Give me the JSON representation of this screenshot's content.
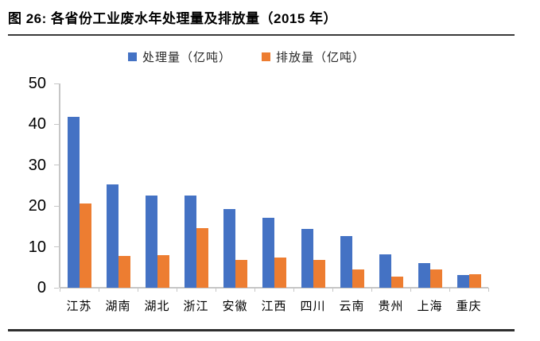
{
  "figure": {
    "title": "图 26:  各省份工业废水年处理量及排放量（2015 年）"
  },
  "chart_data": {
    "type": "bar",
    "title": "各省份工业废水年处理量及排放量（2015 年）",
    "categories": [
      "江苏",
      "湖南",
      "湖北",
      "浙江",
      "安徽",
      "江西",
      "四川",
      "云南",
      "贵州",
      "上海",
      "重庆"
    ],
    "series": [
      {
        "name": "处理量（亿吨）",
        "color": "#4472C4",
        "values": [
          41.8,
          25.2,
          22.6,
          22.6,
          19.2,
          17.2,
          14.4,
          12.7,
          8.2,
          6.0,
          3.2
        ]
      },
      {
        "name": "排放量（亿吨）",
        "color": "#ED7D31",
        "values": [
          20.7,
          7.7,
          8.0,
          14.6,
          6.9,
          7.3,
          6.9,
          4.4,
          2.7,
          4.4,
          3.4
        ]
      }
    ],
    "xlabel": "",
    "ylabel": "",
    "ylim": [
      0,
      50
    ],
    "yticks": [
      0,
      10,
      20,
      30,
      40,
      50
    ],
    "grid": false,
    "legend_position": "top"
  }
}
